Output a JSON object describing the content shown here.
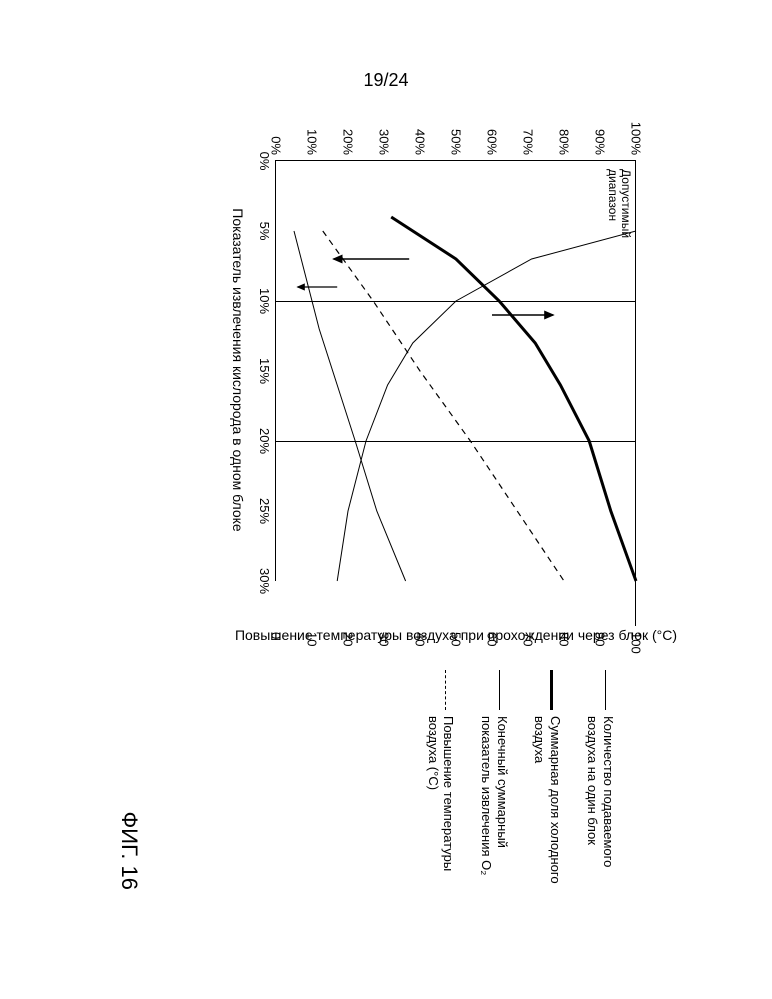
{
  "page_number": "19/24",
  "figure_label": "ФИГ. 16",
  "chart": {
    "type": "line",
    "x": {
      "label": "Показатель извлечения кислорода в одном блоке",
      "min": 0,
      "max": 30,
      "ticks": [
        0,
        5,
        10,
        15,
        20,
        25,
        30
      ],
      "tick_labels": [
        "0%",
        "5%",
        "10%",
        "15%",
        "20%",
        "25%",
        "30%"
      ]
    },
    "y_left": {
      "min": 0,
      "max": 100,
      "ticks": [
        0,
        10,
        20,
        30,
        40,
        50,
        60,
        70,
        80,
        90,
        100
      ],
      "tick_labels": [
        "0%",
        "10%",
        "20%",
        "30%",
        "40%",
        "50%",
        "60%",
        "70%",
        "80%",
        "90%",
        "100%"
      ]
    },
    "y_right": {
      "label": "Повышение температуры воздуха при прохождении через блок (°C)",
      "min": 0,
      "max": 100,
      "ticks": [
        0,
        10,
        20,
        30,
        40,
        50,
        60,
        70,
        80,
        90,
        100
      ],
      "tick_labels": [
        "0",
        "10",
        "20",
        "30",
        "40",
        "50",
        "60",
        "70",
        "80",
        "90",
        "100"
      ]
    },
    "grid_x_at": [
      10,
      20
    ],
    "plot_bg": "#ffffff",
    "grid_color": "#000000",
    "range_box_label": "Допустимый\nдиапазон",
    "series": {
      "feed_air": {
        "label": "Количество подаваемого воздуха на один блок",
        "color": "#000000",
        "width": 1,
        "dash": "",
        "points": [
          [
            5,
            100
          ],
          [
            7,
            71
          ],
          [
            10,
            50
          ],
          [
            13,
            38
          ],
          [
            16,
            31
          ],
          [
            20,
            25
          ],
          [
            25,
            20
          ],
          [
            30,
            17
          ]
        ]
      },
      "cold_air": {
        "label": "Суммарная доля холодного воздуха",
        "color": "#000000",
        "width": 3,
        "dash": "",
        "points": [
          [
            4,
            32
          ],
          [
            7,
            50
          ],
          [
            10,
            62
          ],
          [
            13,
            72
          ],
          [
            16,
            79
          ],
          [
            20,
            87
          ],
          [
            25,
            93
          ],
          [
            30,
            100
          ]
        ]
      },
      "total_o2": {
        "label": "Конечный суммарный показатель извлечения O₂",
        "color": "#000000",
        "width": 1,
        "dash": "",
        "points": [
          [
            5,
            5
          ],
          [
            8,
            8
          ],
          [
            12,
            12
          ],
          [
            16,
            17
          ],
          [
            20,
            22
          ],
          [
            25,
            28
          ],
          [
            30,
            36
          ]
        ]
      },
      "temp_rise": {
        "label": "Повышение температуры воздуха (°C)",
        "color": "#000000",
        "width": 1.2,
        "dash": "6 5",
        "points": [
          [
            5,
            13
          ],
          [
            10,
            27
          ],
          [
            15,
            40
          ],
          [
            20,
            54
          ],
          [
            25,
            67
          ],
          [
            30,
            80
          ]
        ]
      }
    },
    "arrows": [
      {
        "from": [
          7,
          37
        ],
        "to": [
          7,
          16
        ],
        "stroke": "#000",
        "w": 1.5
      },
      {
        "from": [
          11,
          60
        ],
        "to": [
          11,
          77
        ],
        "stroke": "#000",
        "w": 1.5
      },
      {
        "from": [
          9,
          17
        ],
        "to": [
          9,
          6
        ],
        "stroke": "#000",
        "w": 1.2
      }
    ]
  },
  "legend": {
    "items": [
      {
        "key": "feed_air"
      },
      {
        "key": "cold_air"
      },
      {
        "key": "total_o2"
      },
      {
        "key": "temp_rise"
      }
    ]
  }
}
